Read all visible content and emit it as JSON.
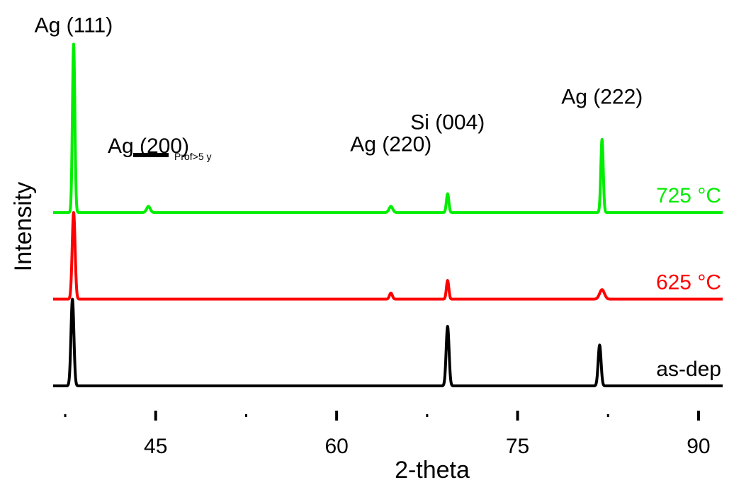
{
  "chart_data": {
    "type": "line",
    "title": "",
    "xlabel": "2-theta",
    "ylabel": "Intensity",
    "xlim": [
      36.5,
      92
    ],
    "x_ticks": [
      {
        "value": 45,
        "label": "45"
      },
      {
        "value": 60,
        "label": "60"
      },
      {
        "value": 75,
        "label": "75"
      },
      {
        "value": 90,
        "label": "90"
      }
    ],
    "x_minor_ticks": [
      37.5,
      52.5,
      67.5,
      82.5
    ],
    "legend": {
      "label": "Prof>5 y",
      "color": "#000000",
      "position": "upper-left"
    },
    "series": [
      {
        "name": "as-dep",
        "label": "as-dep",
        "color": "#000000",
        "baseline": 0,
        "peaks": [
          {
            "x": 38.1,
            "height": 2.55,
            "width": 0.12
          },
          {
            "x": 69.2,
            "height": 1.75,
            "width": 0.12
          },
          {
            "x": 81.8,
            "height": 1.2,
            "width": 0.12
          }
        ]
      },
      {
        "name": "625 °C",
        "label": "625 °C",
        "color": "#ff0000",
        "baseline": 2.55,
        "peaks": [
          {
            "x": 38.2,
            "height": 2.55,
            "width": 0.12
          },
          {
            "x": 64.5,
            "height": 0.18,
            "width": 0.12
          },
          {
            "x": 69.2,
            "height": 0.55,
            "width": 0.1
          },
          {
            "x": 82.0,
            "height": 0.28,
            "width": 0.2
          }
        ]
      },
      {
        "name": "725 °C",
        "label": "725 °C",
        "color": "#00ee00",
        "baseline": 5.1,
        "peaks": [
          {
            "x": 38.2,
            "height": 4.95,
            "width": 0.1
          },
          {
            "x": 44.4,
            "height": 0.18,
            "width": 0.15
          },
          {
            "x": 64.5,
            "height": 0.18,
            "width": 0.15
          },
          {
            "x": 69.2,
            "height": 0.55,
            "width": 0.1
          },
          {
            "x": 82.0,
            "height": 2.15,
            "width": 0.1
          }
        ]
      }
    ],
    "annotations": [
      {
        "text": "Ag (111)",
        "x": 38.2,
        "y": 10.4
      },
      {
        "text": "Ag (200)",
        "x": 44.4,
        "y": 6.85
      },
      {
        "text": "Ag (220)",
        "x": 64.5,
        "y": 6.9
      },
      {
        "text": "Si (004)",
        "x": 69.2,
        "y": 7.55
      },
      {
        "text": "Ag (222)",
        "x": 82.0,
        "y": 8.3
      }
    ]
  }
}
